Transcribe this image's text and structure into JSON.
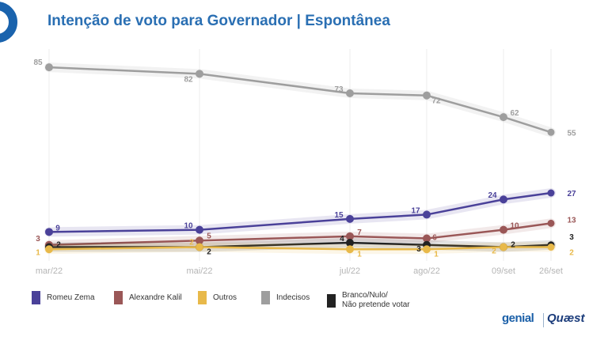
{
  "title": "Intenção de voto para Governador | Espontânea",
  "chart_data": {
    "type": "line",
    "title": "Intenção de voto para Governador | Espontânea",
    "categories": [
      "mar/22",
      "mai/22",
      "jul/22",
      "ago/22",
      "09/set",
      "26/set"
    ],
    "ylim": [
      0,
      90
    ],
    "grid": "vertical",
    "series": [
      {
        "name": "Indecisos",
        "color": "#9e9e9e",
        "values": [
          85,
          82,
          73,
          72,
          62,
          55
        ]
      },
      {
        "name": "Romeu Zema",
        "color": "#4a4199",
        "values": [
          9,
          10,
          15,
          17,
          24,
          27
        ]
      },
      {
        "name": "Alexandre Kalil",
        "color": "#9a5757",
        "values": [
          3,
          5,
          7,
          6,
          10,
          13
        ]
      },
      {
        "name": "Branco/Nulo/\nNão pretende votar",
        "color": "#222222",
        "values": [
          2,
          2,
          4,
          3,
          2,
          3
        ]
      },
      {
        "name": "Outros",
        "color": "#e8b94a",
        "values": [
          1,
          2,
          1,
          1,
          2,
          2
        ]
      }
    ]
  },
  "legend": [
    {
      "label": "Romeu Zema",
      "color": "#4a4199"
    },
    {
      "label": "Alexandre Kalil",
      "color": "#9a5757"
    },
    {
      "label": "Outros",
      "color": "#e8b94a"
    },
    {
      "label": "Indecisos",
      "color": "#9e9e9e"
    },
    {
      "label": "Branco/Nulo/\nNão pretende votar",
      "color": "#222222"
    }
  ],
  "brand": {
    "left": "genial",
    "right": "Quæst"
  }
}
